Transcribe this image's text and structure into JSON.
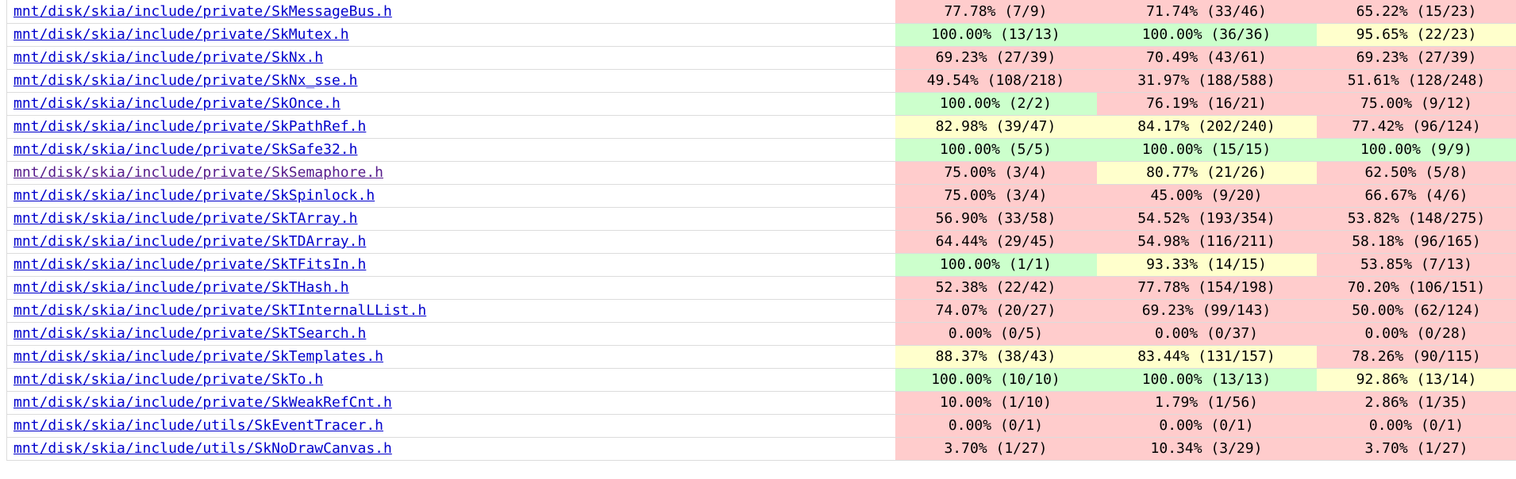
{
  "colors": {
    "low": "#ffcccc",
    "medium": "#ffffcc",
    "high": "#ccffcc",
    "link": "#0000cc",
    "visited_link": "#551a8b"
  },
  "rows": [
    {
      "file": "mnt/disk/skia/include/private/SkMessageBus.h",
      "visited": false,
      "lines": {
        "text": "77.78% (7/9)",
        "level": "lo"
      },
      "functions": {
        "text": "71.74% (33/46)",
        "level": "lo"
      },
      "branches": {
        "text": "65.22% (15/23)",
        "level": "lo"
      }
    },
    {
      "file": "mnt/disk/skia/include/private/SkMutex.h",
      "visited": false,
      "lines": {
        "text": "100.00% (13/13)",
        "level": "hi"
      },
      "functions": {
        "text": "100.00% (36/36)",
        "level": "hi"
      },
      "branches": {
        "text": "95.65% (22/23)",
        "level": "med"
      }
    },
    {
      "file": "mnt/disk/skia/include/private/SkNx.h",
      "visited": false,
      "lines": {
        "text": "69.23% (27/39)",
        "level": "lo"
      },
      "functions": {
        "text": "70.49% (43/61)",
        "level": "lo"
      },
      "branches": {
        "text": "69.23% (27/39)",
        "level": "lo"
      }
    },
    {
      "file": "mnt/disk/skia/include/private/SkNx_sse.h",
      "visited": false,
      "lines": {
        "text": "49.54% (108/218)",
        "level": "lo"
      },
      "functions": {
        "text": "31.97% (188/588)",
        "level": "lo"
      },
      "branches": {
        "text": "51.61% (128/248)",
        "level": "lo"
      }
    },
    {
      "file": "mnt/disk/skia/include/private/SkOnce.h",
      "visited": false,
      "lines": {
        "text": "100.00% (2/2)",
        "level": "hi"
      },
      "functions": {
        "text": "76.19% (16/21)",
        "level": "lo"
      },
      "branches": {
        "text": "75.00% (9/12)",
        "level": "lo"
      }
    },
    {
      "file": "mnt/disk/skia/include/private/SkPathRef.h",
      "visited": false,
      "lines": {
        "text": "82.98% (39/47)",
        "level": "med"
      },
      "functions": {
        "text": "84.17% (202/240)",
        "level": "med"
      },
      "branches": {
        "text": "77.42% (96/124)",
        "level": "lo"
      }
    },
    {
      "file": "mnt/disk/skia/include/private/SkSafe32.h",
      "visited": false,
      "lines": {
        "text": "100.00% (5/5)",
        "level": "hi"
      },
      "functions": {
        "text": "100.00% (15/15)",
        "level": "hi"
      },
      "branches": {
        "text": "100.00% (9/9)",
        "level": "hi"
      }
    },
    {
      "file": "mnt/disk/skia/include/private/SkSemaphore.h",
      "visited": true,
      "lines": {
        "text": "75.00% (3/4)",
        "level": "lo"
      },
      "functions": {
        "text": "80.77% (21/26)",
        "level": "med"
      },
      "branches": {
        "text": "62.50% (5/8)",
        "level": "lo"
      }
    },
    {
      "file": "mnt/disk/skia/include/private/SkSpinlock.h",
      "visited": false,
      "lines": {
        "text": "75.00% (3/4)",
        "level": "lo"
      },
      "functions": {
        "text": "45.00% (9/20)",
        "level": "lo"
      },
      "branches": {
        "text": "66.67% (4/6)",
        "level": "lo"
      }
    },
    {
      "file": "mnt/disk/skia/include/private/SkTArray.h",
      "visited": false,
      "lines": {
        "text": "56.90% (33/58)",
        "level": "lo"
      },
      "functions": {
        "text": "54.52% (193/354)",
        "level": "lo"
      },
      "branches": {
        "text": "53.82% (148/275)",
        "level": "lo"
      }
    },
    {
      "file": "mnt/disk/skia/include/private/SkTDArray.h",
      "visited": false,
      "lines": {
        "text": "64.44% (29/45)",
        "level": "lo"
      },
      "functions": {
        "text": "54.98% (116/211)",
        "level": "lo"
      },
      "branches": {
        "text": "58.18% (96/165)",
        "level": "lo"
      }
    },
    {
      "file": "mnt/disk/skia/include/private/SkTFitsIn.h",
      "visited": false,
      "lines": {
        "text": "100.00% (1/1)",
        "level": "hi"
      },
      "functions": {
        "text": "93.33% (14/15)",
        "level": "med"
      },
      "branches": {
        "text": "53.85% (7/13)",
        "level": "lo"
      }
    },
    {
      "file": "mnt/disk/skia/include/private/SkTHash.h",
      "visited": false,
      "lines": {
        "text": "52.38% (22/42)",
        "level": "lo"
      },
      "functions": {
        "text": "77.78% (154/198)",
        "level": "lo"
      },
      "branches": {
        "text": "70.20% (106/151)",
        "level": "lo"
      }
    },
    {
      "file": "mnt/disk/skia/include/private/SkTInternalLList.h",
      "visited": false,
      "lines": {
        "text": "74.07% (20/27)",
        "level": "lo"
      },
      "functions": {
        "text": "69.23% (99/143)",
        "level": "lo"
      },
      "branches": {
        "text": "50.00% (62/124)",
        "level": "lo"
      }
    },
    {
      "file": "mnt/disk/skia/include/private/SkTSearch.h",
      "visited": false,
      "lines": {
        "text": "0.00% (0/5)",
        "level": "lo"
      },
      "functions": {
        "text": "0.00% (0/37)",
        "level": "lo"
      },
      "branches": {
        "text": "0.00% (0/28)",
        "level": "lo"
      }
    },
    {
      "file": "mnt/disk/skia/include/private/SkTemplates.h",
      "visited": false,
      "lines": {
        "text": "88.37% (38/43)",
        "level": "med"
      },
      "functions": {
        "text": "83.44% (131/157)",
        "level": "med"
      },
      "branches": {
        "text": "78.26% (90/115)",
        "level": "lo"
      }
    },
    {
      "file": "mnt/disk/skia/include/private/SkTo.h",
      "visited": false,
      "lines": {
        "text": "100.00% (10/10)",
        "level": "hi"
      },
      "functions": {
        "text": "100.00% (13/13)",
        "level": "hi"
      },
      "branches": {
        "text": "92.86% (13/14)",
        "level": "med"
      }
    },
    {
      "file": "mnt/disk/skia/include/private/SkWeakRefCnt.h",
      "visited": false,
      "lines": {
        "text": "10.00% (1/10)",
        "level": "lo"
      },
      "functions": {
        "text": "1.79% (1/56)",
        "level": "lo"
      },
      "branches": {
        "text": "2.86% (1/35)",
        "level": "lo"
      }
    },
    {
      "file": "mnt/disk/skia/include/utils/SkEventTracer.h",
      "visited": false,
      "lines": {
        "text": "0.00% (0/1)",
        "level": "lo"
      },
      "functions": {
        "text": "0.00% (0/1)",
        "level": "lo"
      },
      "branches": {
        "text": "0.00% (0/1)",
        "level": "lo"
      }
    },
    {
      "file": "mnt/disk/skia/include/utils/SkNoDrawCanvas.h",
      "visited": false,
      "lines": {
        "text": "3.70% (1/27)",
        "level": "lo"
      },
      "functions": {
        "text": "10.34% (3/29)",
        "level": "lo"
      },
      "branches": {
        "text": "3.70% (1/27)",
        "level": "lo"
      }
    }
  ]
}
